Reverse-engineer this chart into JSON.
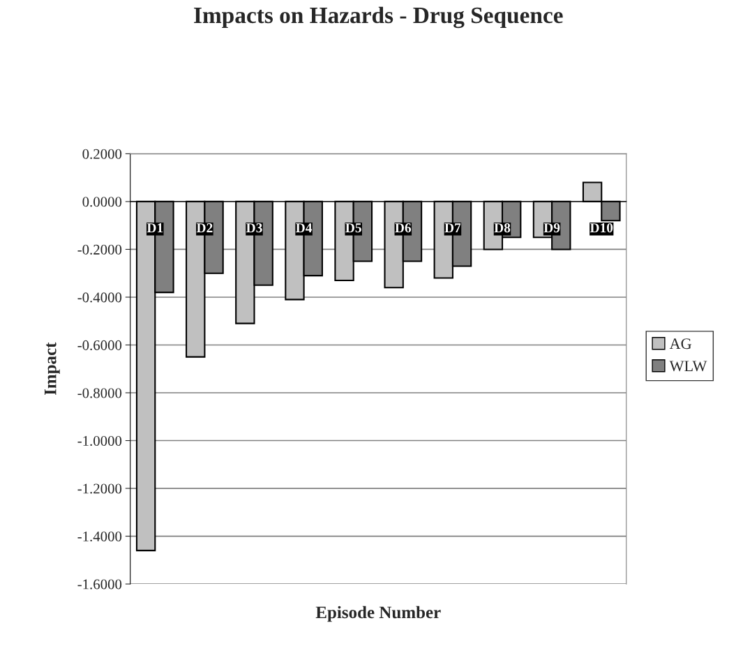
{
  "chart_data": {
    "type": "bar",
    "title": "Impacts on Hazards - Drug Sequence",
    "xlabel": "Episode Number",
    "ylabel": "Impact",
    "categories": [
      "D1",
      "D2",
      "D3",
      "D4",
      "D5",
      "D6",
      "D7",
      "D8",
      "D9",
      "D10"
    ],
    "series": [
      {
        "name": "AG",
        "color": "#c0c0c0",
        "values": [
          -1.46,
          -0.65,
          -0.51,
          -0.41,
          -0.33,
          -0.36,
          -0.32,
          -0.2,
          -0.15,
          0.08
        ]
      },
      {
        "name": "WLW",
        "color": "#808080",
        "values": [
          -0.38,
          -0.3,
          -0.35,
          -0.31,
          -0.25,
          -0.25,
          -0.27,
          -0.15,
          -0.2,
          -0.08
        ]
      }
    ],
    "ylim": [
      -1.6,
      0.2
    ],
    "yticks": [
      {
        "value": 0.2,
        "label": "0.2000"
      },
      {
        "value": 0,
        "label": "0.0000"
      },
      {
        "value": -0.2,
        "label": "-0.2000"
      },
      {
        "value": -0.4,
        "label": "-0.4000"
      },
      {
        "value": -0.6,
        "label": "-0.6000"
      },
      {
        "value": -0.8,
        "label": "-0.8000"
      },
      {
        "value": -1.0,
        "label": "-1.0000"
      },
      {
        "value": -1.2,
        "label": "-1.2000"
      },
      {
        "value": -1.4,
        "label": "-1.4000"
      },
      {
        "value": -1.6,
        "label": "-1.6000"
      }
    ],
    "grid": "y",
    "legend": "right"
  }
}
